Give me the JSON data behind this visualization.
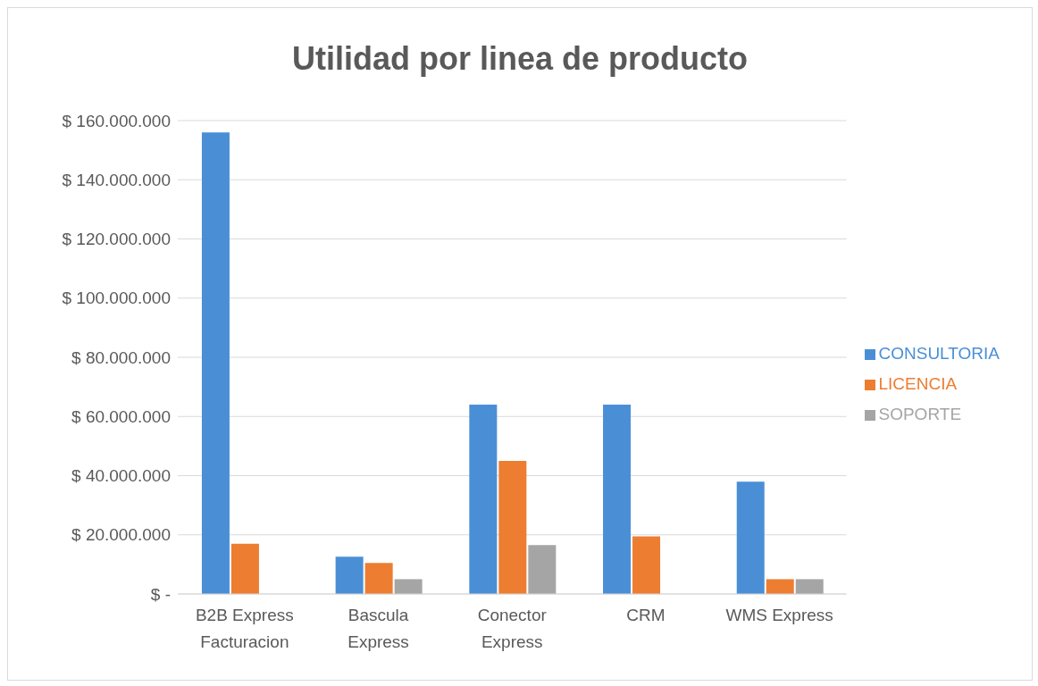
{
  "chart_data": {
    "type": "bar",
    "title": "Utilidad por linea de producto",
    "categories": [
      "B2B Express Facturacion",
      "Bascula Express",
      "Conector Express",
      "CRM",
      "WMS Express"
    ],
    "series": [
      {
        "name": "CONSULTORIA",
        "color": "#4a8fd6",
        "values": [
          156000000,
          12600000,
          64000000,
          64000000,
          38000000
        ]
      },
      {
        "name": "LICENCIA",
        "color": "#ed7d31",
        "values": [
          17000000,
          10500000,
          45000000,
          19500000,
          5000000
        ]
      },
      {
        "name": "SOPORTE",
        "color": "#a5a5a5",
        "values": [
          null,
          5000000,
          16500000,
          null,
          5000000
        ]
      }
    ],
    "ylim": [
      0,
      160000000
    ],
    "yticks": [
      {
        "value": 0,
        "label": "$ -"
      },
      {
        "value": 20000000,
        "label": "$ 20.000.000"
      },
      {
        "value": 40000000,
        "label": "$ 40.000.000"
      },
      {
        "value": 60000000,
        "label": "$ 60.000.000"
      },
      {
        "value": 80000000,
        "label": "$ 80.000.000"
      },
      {
        "value": 100000000,
        "label": "$ 100.000.000"
      },
      {
        "value": 120000000,
        "label": "$ 120.000.000"
      },
      {
        "value": 140000000,
        "label": "$ 140.000.000"
      },
      {
        "value": 160000000,
        "label": "$ 160.000.000"
      }
    ],
    "grid": "y",
    "legend": "right"
  }
}
